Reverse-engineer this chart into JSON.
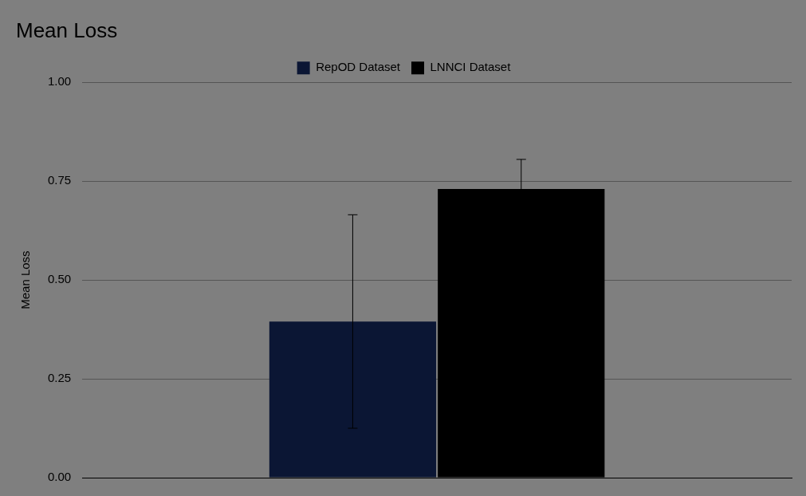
{
  "chart_data": {
    "type": "bar",
    "title": "Mean Loss",
    "ylabel": "Mean Loss",
    "categories": [
      null
    ],
    "series": [
      {
        "name": "RepOD Dataset",
        "color": "#0b1634",
        "values": [
          0.395
        ],
        "errors": [
          0.27
        ]
      },
      {
        "name": "LNNCI Dataset",
        "color": "#000000",
        "values": [
          0.73
        ],
        "errors": [
          0.075
        ]
      }
    ],
    "ylim": [
      0,
      1
    ],
    "yticks": [
      {
        "value": 0,
        "label": "0.00"
      },
      {
        "value": 0.25,
        "label": "0.25"
      },
      {
        "value": 0.5,
        "label": "0.50"
      },
      {
        "value": 0.75,
        "label": "0.75"
      },
      {
        "value": 1,
        "label": "1.00"
      }
    ],
    "grid": "y",
    "legend": "top"
  }
}
